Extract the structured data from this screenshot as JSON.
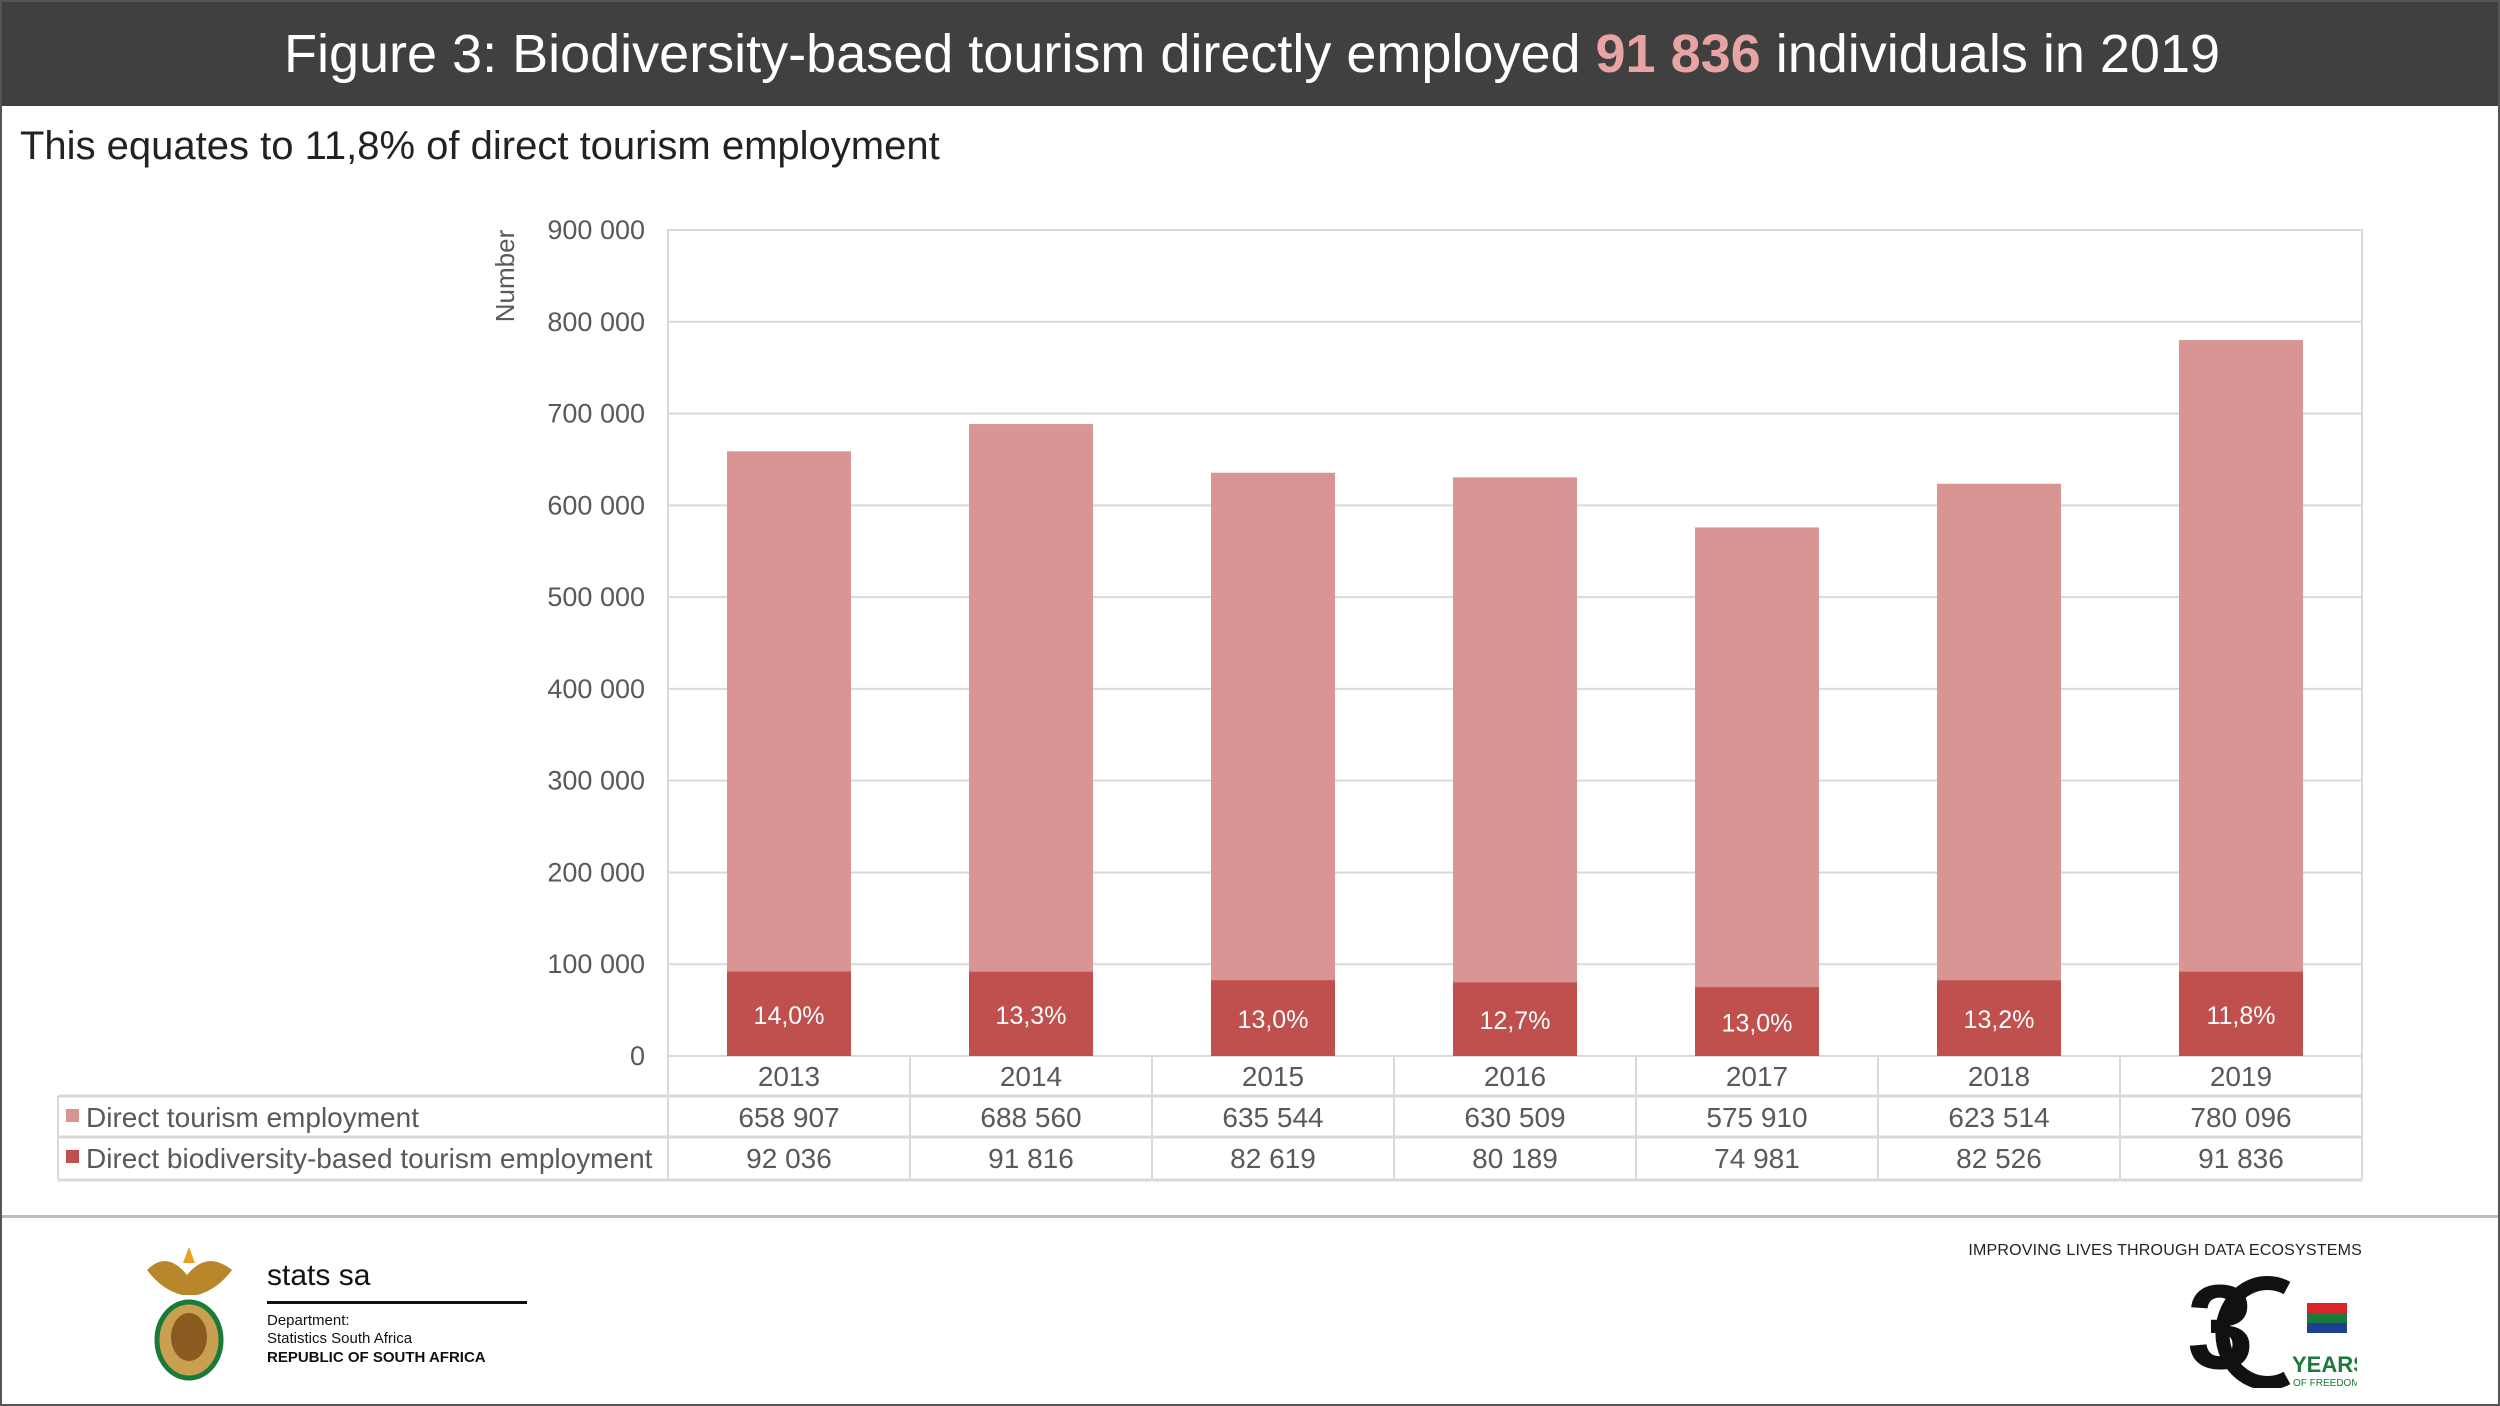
{
  "title": {
    "prefix": "Figure 3: Biodiversity-based tourism directly employed ",
    "highlight": "91 836",
    "suffix": " individuals in 2019"
  },
  "subtitle": "This equates to 11,8% of direct tourism employment",
  "colors": {
    "title_bg": "#404040",
    "highlight": "#e8a3a3",
    "direct": "#d99594",
    "biodiversity": "#c0504d"
  },
  "chart_data": {
    "type": "bar",
    "stacked": true,
    "categories": [
      "2013",
      "2014",
      "2015",
      "2016",
      "2017",
      "2018",
      "2019"
    ],
    "ylabel": "Number",
    "ylim": [
      0,
      900000
    ],
    "yticks": [
      0,
      100000,
      200000,
      300000,
      400000,
      500000,
      600000,
      700000,
      800000,
      900000
    ],
    "ytick_labels": [
      "0",
      "100 000",
      "200 000",
      "300 000",
      "400 000",
      "500 000",
      "600 000",
      "700 000",
      "800 000",
      "900 000"
    ],
    "grid": true,
    "legend_placement": "data-table",
    "series": [
      {
        "name": "Direct tourism employment",
        "values": [
          658907,
          688560,
          635544,
          630509,
          575910,
          623514,
          780096
        ],
        "labels": [
          "658 907",
          "688 560",
          "635 544",
          "630 509",
          "575 910",
          "623 514",
          "780 096"
        ]
      },
      {
        "name": "Direct biodiversity-based tourism employment",
        "values": [
          92036,
          91816,
          82619,
          80189,
          74981,
          82526,
          91836
        ],
        "labels": [
          "92 036",
          "91 816",
          "82 619",
          "80 189",
          "74 981",
          "82 526",
          "91 836"
        ],
        "data_labels": [
          "14,0%",
          "13,3%",
          "13,0%",
          "12,7%",
          "13,0%",
          "13,2%",
          "11,8%"
        ]
      }
    ]
  },
  "footer": {
    "brand": "stats sa",
    "dept": "Department:",
    "org": "Statistics South Africa",
    "country": "REPUBLIC OF SOUTH AFRICA",
    "tagline": "IMPROVING LIVES THROUGH DATA ECOSYSTEMS",
    "anniv_years": "YEARS",
    "anniv_sub": "OF FREEDOM"
  }
}
